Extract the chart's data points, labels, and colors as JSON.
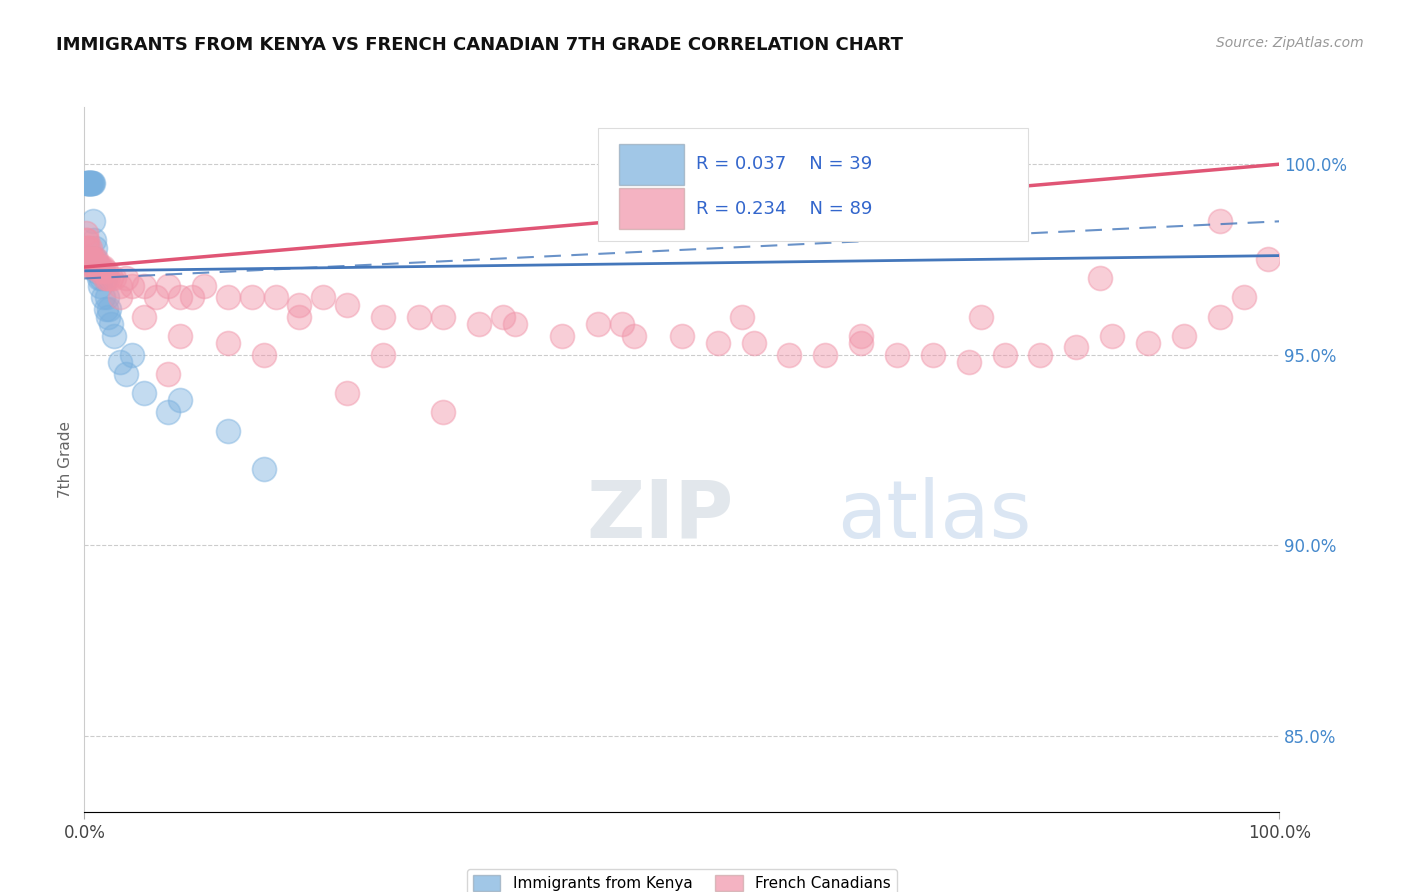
{
  "title": "IMMIGRANTS FROM KENYA VS FRENCH CANADIAN 7TH GRADE CORRELATION CHART",
  "source_text": "Source: ZipAtlas.com",
  "ylabel": "7th Grade",
  "watermark_zip": "ZIP",
  "watermark_atlas": "atlas",
  "legend_r_kenya": "R = 0.037",
  "legend_n_kenya": "N = 39",
  "legend_r_french": "R = 0.234",
  "legend_n_french": "N = 89",
  "kenya_color": "#7ab0de",
  "french_color": "#f093a8",
  "kenya_trend_color": "#4477bb",
  "french_trend_color": "#e05575",
  "xlim": [
    0.0,
    100.0
  ],
  "ylim": [
    83.0,
    101.5
  ],
  "right_yticks": [
    85.0,
    90.0,
    95.0,
    100.0
  ],
  "right_yticklabels": [
    "85.0%",
    "90.0%",
    "95.0%",
    "100.0%"
  ],
  "kenya_trend_start_y": 97.2,
  "kenya_trend_end_y": 97.6,
  "kenya_dash_start_y": 97.0,
  "kenya_dash_end_y": 98.5,
  "french_trend_start_y": 97.3,
  "french_trend_end_y": 100.0,
  "kenya_x": [
    0.15,
    0.2,
    0.25,
    0.3,
    0.35,
    0.4,
    0.45,
    0.5,
    0.55,
    0.6,
    0.65,
    0.7,
    0.75,
    0.8,
    0.85,
    0.9,
    0.95,
    1.0,
    1.1,
    1.2,
    1.3,
    1.4,
    1.5,
    1.6,
    1.7,
    1.8,
    1.9,
    2.0,
    2.1,
    2.2,
    2.5,
    3.0,
    3.5,
    4.0,
    5.0,
    7.0,
    8.0,
    12.0,
    15.0
  ],
  "kenya_y": [
    99.5,
    99.5,
    99.5,
    99.5,
    99.5,
    99.5,
    99.5,
    99.5,
    99.5,
    99.5,
    99.5,
    99.5,
    98.5,
    98.0,
    97.8,
    97.5,
    97.3,
    97.2,
    97.3,
    97.0,
    96.8,
    97.0,
    97.2,
    96.5,
    97.0,
    96.2,
    96.5,
    96.0,
    96.2,
    95.8,
    95.5,
    94.8,
    94.5,
    95.0,
    94.0,
    93.5,
    93.8,
    93.0,
    92.0
  ],
  "french_x": [
    0.1,
    0.15,
    0.2,
    0.25,
    0.3,
    0.35,
    0.4,
    0.45,
    0.5,
    0.55,
    0.6,
    0.65,
    0.7,
    0.75,
    0.8,
    0.85,
    0.9,
    0.95,
    1.0,
    1.1,
    1.2,
    1.3,
    1.4,
    1.5,
    1.6,
    1.7,
    1.8,
    1.9,
    2.0,
    2.2,
    2.5,
    3.0,
    3.5,
    4.0,
    5.0,
    6.0,
    7.0,
    8.0,
    9.0,
    10.0,
    12.0,
    14.0,
    16.0,
    18.0,
    20.0,
    22.0,
    25.0,
    28.0,
    30.0,
    33.0,
    36.0,
    40.0,
    43.0,
    46.0,
    50.0,
    53.0,
    56.0,
    59.0,
    62.0,
    65.0,
    68.0,
    71.0,
    74.0,
    77.0,
    80.0,
    83.0,
    86.0,
    89.0,
    92.0,
    95.0,
    97.0,
    99.0,
    3.0,
    5.0,
    8.0,
    12.0,
    18.0,
    25.0,
    35.0,
    45.0,
    55.0,
    65.0,
    75.0,
    85.0,
    95.0,
    7.0,
    15.0,
    22.0,
    30.0
  ],
  "french_y": [
    98.0,
    98.2,
    98.0,
    97.8,
    97.8,
    97.5,
    97.5,
    97.8,
    97.5,
    97.5,
    97.5,
    97.3,
    97.5,
    97.3,
    97.5,
    97.3,
    97.3,
    97.5,
    97.3,
    97.3,
    97.2,
    97.3,
    97.3,
    97.2,
    97.3,
    97.0,
    97.2,
    97.0,
    97.0,
    97.0,
    97.0,
    96.8,
    97.0,
    96.8,
    96.8,
    96.5,
    96.8,
    96.5,
    96.5,
    96.8,
    96.5,
    96.5,
    96.5,
    96.3,
    96.5,
    96.3,
    96.0,
    96.0,
    96.0,
    95.8,
    95.8,
    95.5,
    95.8,
    95.5,
    95.5,
    95.3,
    95.3,
    95.0,
    95.0,
    95.3,
    95.0,
    95.0,
    94.8,
    95.0,
    95.0,
    95.2,
    95.5,
    95.3,
    95.5,
    96.0,
    96.5,
    97.5,
    96.5,
    96.0,
    95.5,
    95.3,
    96.0,
    95.0,
    96.0,
    95.8,
    96.0,
    95.5,
    96.0,
    97.0,
    98.5,
    94.5,
    95.0,
    94.0,
    93.5
  ]
}
